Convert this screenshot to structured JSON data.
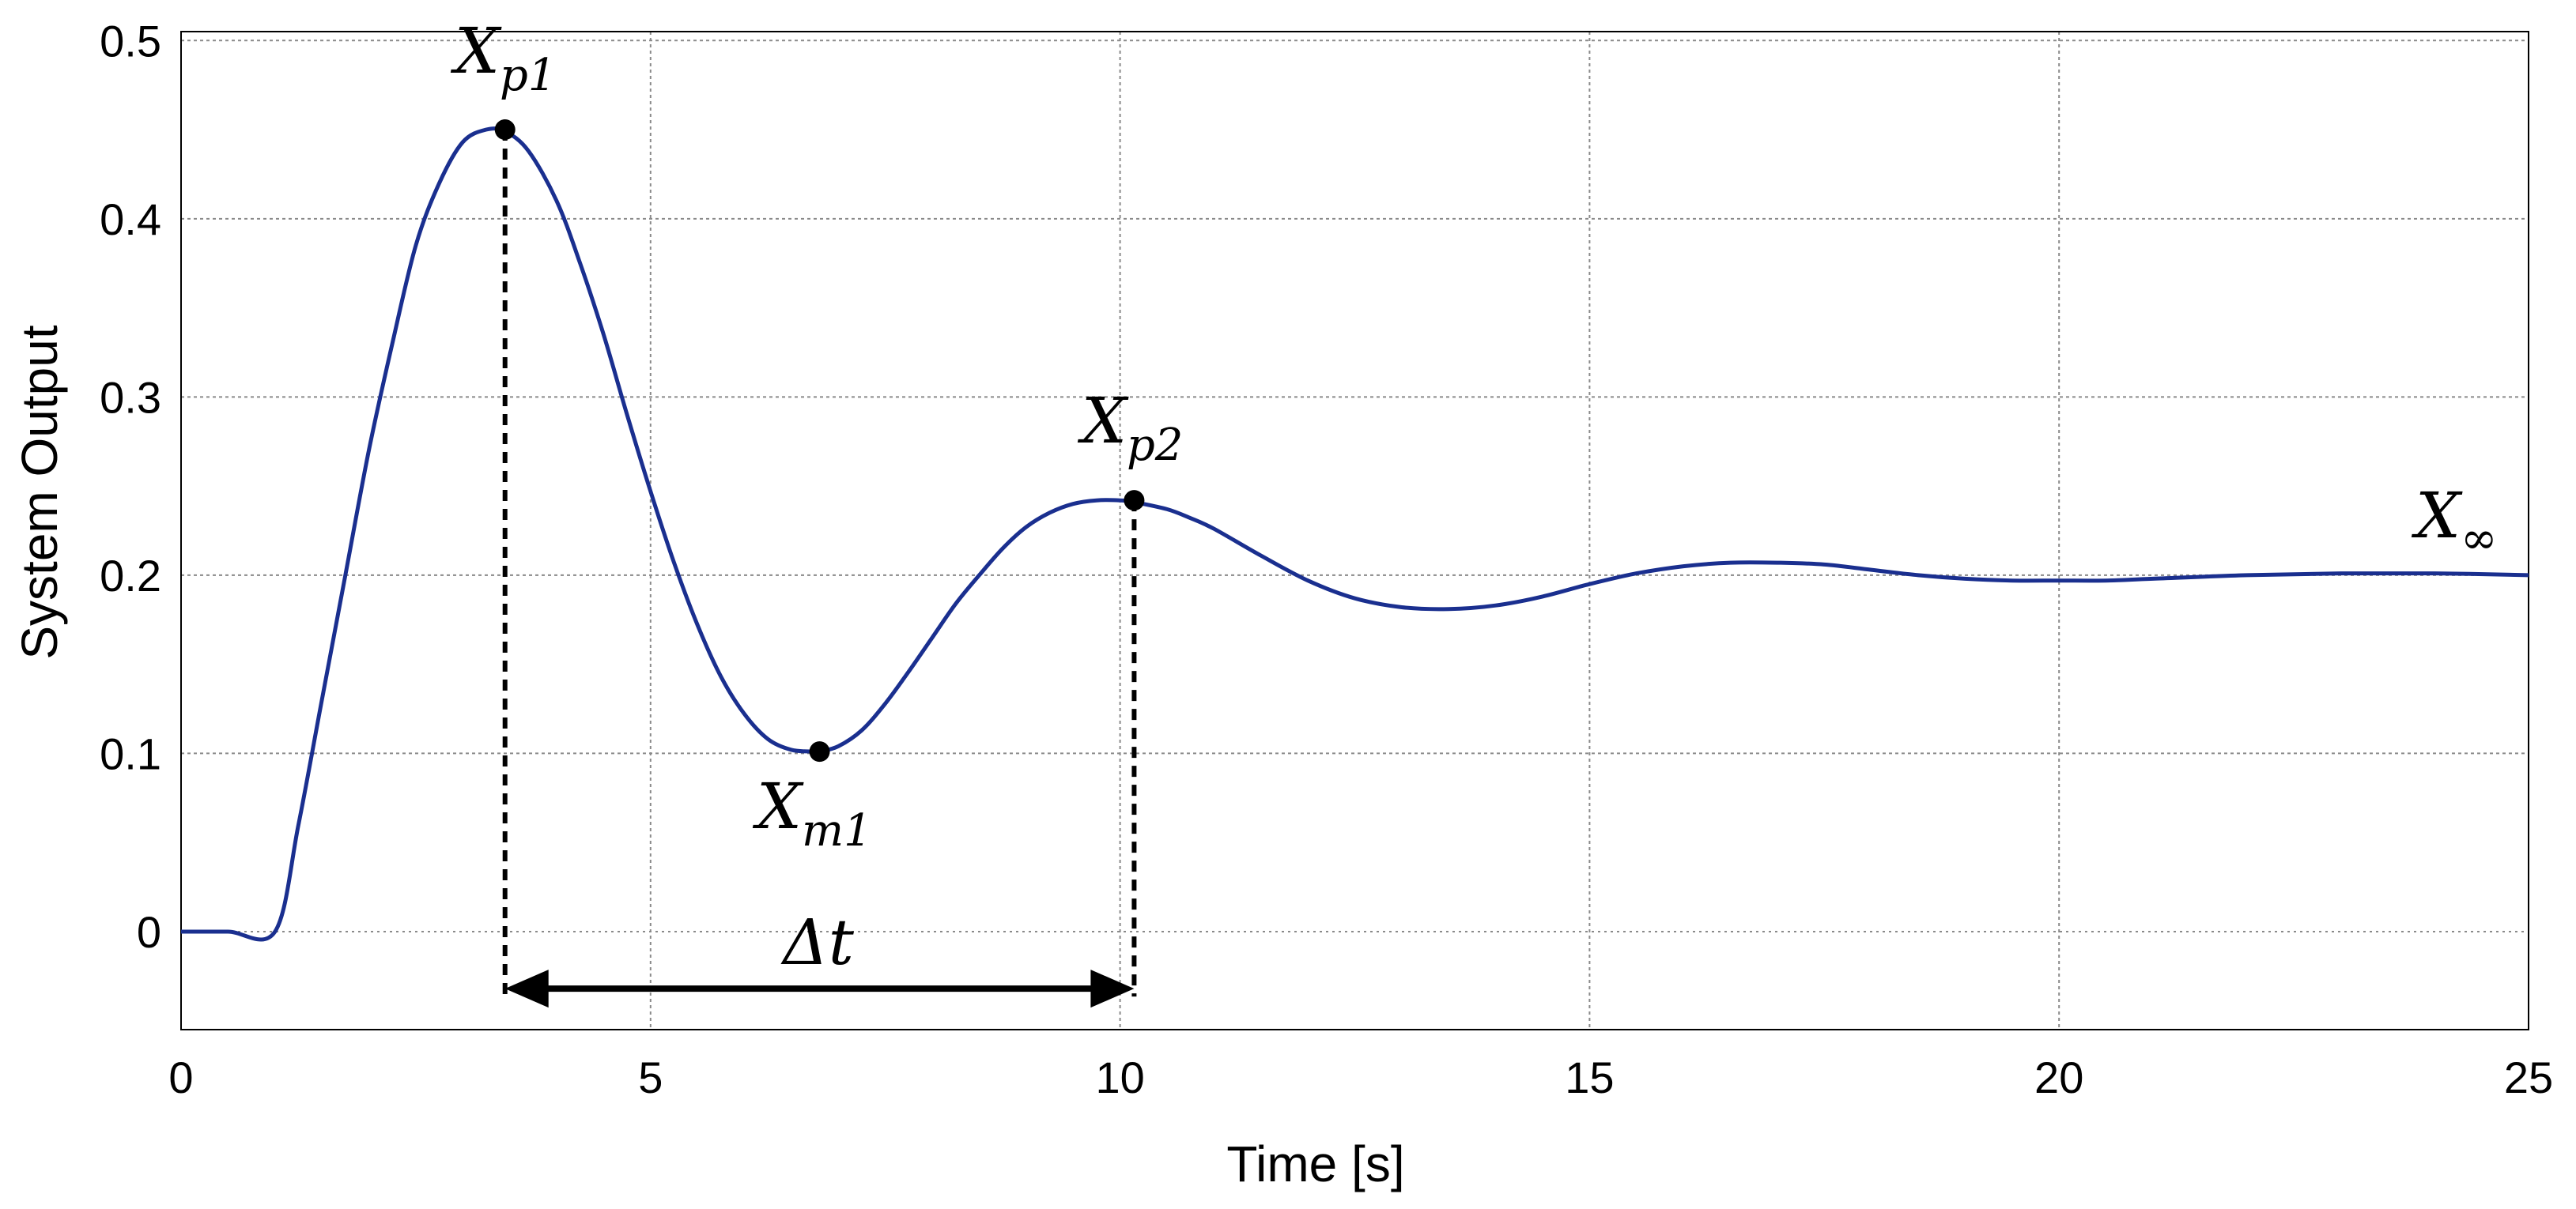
{
  "chart_data": {
    "type": "line",
    "xlabel": "Time [s]",
    "ylabel": "System Output",
    "xlim": [
      0,
      25
    ],
    "ylim": [
      -0.055,
      0.505
    ],
    "x_ticks": [
      0,
      5,
      10,
      15,
      20,
      25
    ],
    "x_tick_labels": [
      "0",
      "5",
      "10",
      "15",
      "20",
      "25"
    ],
    "y_ticks": [
      0,
      0.1,
      0.2,
      0.3,
      0.4,
      0.5
    ],
    "y_tick_labels": [
      "0",
      "0.1",
      "0.2",
      "0.3",
      "0.4",
      "0.5"
    ],
    "grid": true,
    "line_color": "#1a2f8f",
    "series": [
      {
        "x": [
          0,
          0.5,
          1.0,
          1.25,
          1.5,
          1.75,
          2.0,
          2.25,
          2.5,
          2.75,
          3.0,
          3.25,
          3.45,
          3.7,
          4.0,
          4.25,
          4.5,
          4.75,
          5.0,
          5.25,
          5.5,
          5.75,
          6.0,
          6.25,
          6.5,
          6.75,
          6.8,
          7.0,
          7.25,
          7.5,
          7.75,
          8.0,
          8.25,
          8.5,
          8.75,
          9.0,
          9.25,
          9.5,
          9.75,
          10.0,
          10.15,
          10.5,
          10.75,
          11.0,
          11.5,
          12.0,
          12.5,
          13.0,
          13.5,
          14.0,
          14.5,
          15.0,
          15.5,
          16.0,
          16.5,
          17.0,
          17.5,
          18.0,
          18.5,
          19.0,
          19.5,
          20.0,
          20.5,
          21.0,
          22.0,
          23.0,
          24.0,
          25.0
        ],
        "y": [
          0,
          0,
          0,
          0.06,
          0.13,
          0.2,
          0.27,
          0.33,
          0.385,
          0.42,
          0.443,
          0.45,
          0.449,
          0.438,
          0.41,
          0.375,
          0.335,
          0.29,
          0.247,
          0.207,
          0.172,
          0.143,
          0.122,
          0.108,
          0.102,
          0.101,
          0.101,
          0.104,
          0.113,
          0.128,
          0.146,
          0.165,
          0.184,
          0.2,
          0.215,
          0.227,
          0.235,
          0.24,
          0.242,
          0.242,
          0.241,
          0.237,
          0.232,
          0.226,
          0.211,
          0.197,
          0.187,
          0.182,
          0.181,
          0.183,
          0.188,
          0.195,
          0.201,
          0.205,
          0.207,
          0.207,
          0.206,
          0.203,
          0.2,
          0.198,
          0.197,
          0.197,
          0.197,
          0.198,
          0.2,
          0.201,
          0.201,
          0.2
        ]
      }
    ],
    "points": [
      {
        "label": "X_p1",
        "x": 3.45,
        "y": 0.45
      },
      {
        "label": "X_m1",
        "x": 6.8,
        "y": 0.101
      },
      {
        "label": "X_p2",
        "x": 10.15,
        "y": 0.242
      }
    ],
    "annotations": {
      "xp1": {
        "base": "X",
        "sub": "p1"
      },
      "xm1": {
        "base": "X",
        "sub": "m1"
      },
      "xp2": {
        "base": "X",
        "sub": "p2"
      },
      "xinf": {
        "base": "X",
        "sub": "∞"
      },
      "delta": "Δt"
    },
    "dashed_x": [
      3.45,
      10.15
    ],
    "arrow": {
      "x_from": 3.45,
      "x_to": 10.15,
      "y": -0.032
    }
  }
}
